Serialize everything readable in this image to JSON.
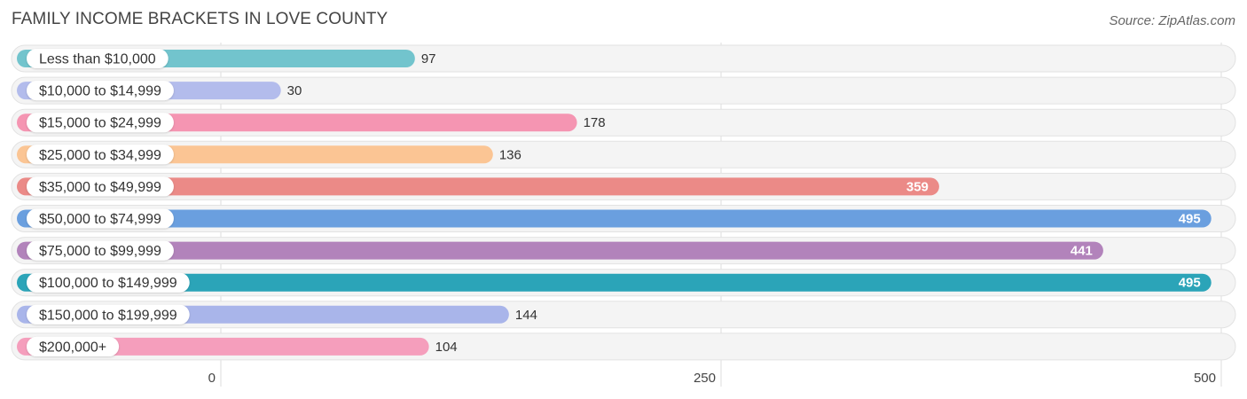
{
  "title": "FAMILY INCOME BRACKETS IN LOVE COUNTY",
  "source": "Source: ZipAtlas.com",
  "chart_data": {
    "type": "bar",
    "orientation": "horizontal",
    "title": "FAMILY INCOME BRACKETS IN LOVE COUNTY",
    "categories": [
      "Less than $10,000",
      "$10,000 to $14,999",
      "$15,000 to $24,999",
      "$25,000 to $34,999",
      "$35,000 to $49,999",
      "$50,000 to $74,999",
      "$75,000 to $99,999",
      "$100,000 to $149,999",
      "$150,000 to $199,999",
      "$200,000+"
    ],
    "values": [
      97,
      30,
      178,
      136,
      359,
      495,
      441,
      495,
      144,
      104
    ],
    "colors": [
      "#72c4cd",
      "#b3bcec",
      "#f595b2",
      "#fbc594",
      "#eb8a87",
      "#6a9fdf",
      "#b283bb",
      "#2ba4b8",
      "#a9b5ea",
      "#f59ebc"
    ],
    "xlim": [
      0,
      500
    ],
    "ticks": [
      0,
      250,
      500
    ],
    "grid": true,
    "xlabel": "",
    "ylabel": ""
  }
}
